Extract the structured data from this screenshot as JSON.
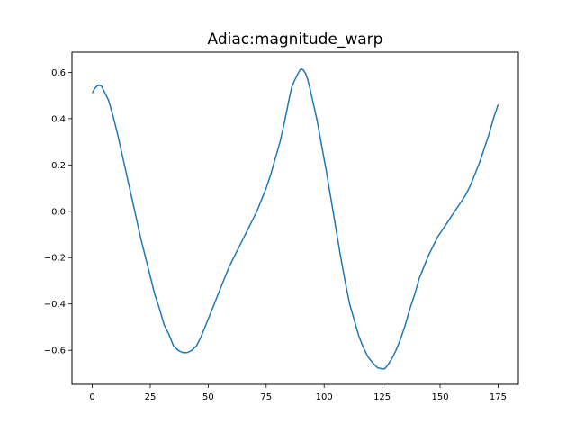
{
  "chart_data": {
    "type": "line",
    "title": "Adiac:magnitude_warp",
    "xlabel": "",
    "ylabel": "",
    "xlim": [
      -8.75,
      183.75
    ],
    "ylim": [
      -0.747,
      0.687
    ],
    "grid": false,
    "legend": "none",
    "x_ticks": [
      0,
      25,
      50,
      75,
      100,
      125,
      150,
      175
    ],
    "x_tick_labels": [
      "0",
      "25",
      "50",
      "75",
      "100",
      "125",
      "150",
      "175"
    ],
    "y_ticks": [
      -0.6,
      -0.4,
      -0.2,
      0.0,
      0.2,
      0.4,
      0.6
    ],
    "y_tick_labels": [
      "−0.6",
      "−0.4",
      "−0.2",
      "0.0",
      "0.2",
      "0.4",
      "0.6"
    ],
    "series": [
      {
        "color": "#1f77b4",
        "points": [
          [
            0,
            0.51
          ],
          [
            1,
            0.53
          ],
          [
            2,
            0.54
          ],
          [
            3,
            0.545
          ],
          [
            4,
            0.54
          ],
          [
            5,
            0.52
          ],
          [
            7,
            0.48
          ],
          [
            9,
            0.41
          ],
          [
            11,
            0.33
          ],
          [
            13,
            0.24
          ],
          [
            15,
            0.15
          ],
          [
            17,
            0.06
          ],
          [
            19,
            -0.03
          ],
          [
            21,
            -0.12
          ],
          [
            23,
            -0.2
          ],
          [
            25,
            -0.28
          ],
          [
            27,
            -0.36
          ],
          [
            29,
            -0.42
          ],
          [
            31,
            -0.49
          ],
          [
            33,
            -0.53
          ],
          [
            35,
            -0.58
          ],
          [
            37,
            -0.6
          ],
          [
            39,
            -0.61
          ],
          [
            41,
            -0.61
          ],
          [
            43,
            -0.6
          ],
          [
            45,
            -0.58
          ],
          [
            47,
            -0.54
          ],
          [
            49,
            -0.49
          ],
          [
            51,
            -0.44
          ],
          [
            53,
            -0.39
          ],
          [
            55,
            -0.34
          ],
          [
            57,
            -0.29
          ],
          [
            59,
            -0.24
          ],
          [
            61,
            -0.2
          ],
          [
            63,
            -0.16
          ],
          [
            65,
            -0.12
          ],
          [
            67,
            -0.08
          ],
          [
            69,
            -0.04
          ],
          [
            71,
            0.0
          ],
          [
            73,
            0.05
          ],
          [
            75,
            0.1
          ],
          [
            77,
            0.16
          ],
          [
            79,
            0.23
          ],
          [
            81,
            0.3
          ],
          [
            83,
            0.39
          ],
          [
            84,
            0.44
          ],
          [
            85,
            0.49
          ],
          [
            86,
            0.535
          ],
          [
            87,
            0.56
          ],
          [
            88,
            0.58
          ],
          [
            89,
            0.6
          ],
          [
            90,
            0.615
          ],
          [
            91,
            0.61
          ],
          [
            92,
            0.595
          ],
          [
            93,
            0.565
          ],
          [
            94,
            0.525
          ],
          [
            95,
            0.48
          ],
          [
            97,
            0.39
          ],
          [
            99,
            0.28
          ],
          [
            101,
            0.17
          ],
          [
            103,
            0.05
          ],
          [
            105,
            -0.07
          ],
          [
            107,
            -0.19
          ],
          [
            109,
            -0.3
          ],
          [
            111,
            -0.4
          ],
          [
            113,
            -0.47
          ],
          [
            115,
            -0.54
          ],
          [
            117,
            -0.59
          ],
          [
            119,
            -0.63
          ],
          [
            121,
            -0.655
          ],
          [
            123,
            -0.675
          ],
          [
            125,
            -0.68
          ],
          [
            126,
            -0.68
          ],
          [
            127,
            -0.67
          ],
          [
            129,
            -0.64
          ],
          [
            131,
            -0.6
          ],
          [
            133,
            -0.55
          ],
          [
            135,
            -0.49
          ],
          [
            137,
            -0.42
          ],
          [
            139,
            -0.36
          ],
          [
            141,
            -0.29
          ],
          [
            143,
            -0.24
          ],
          [
            145,
            -0.19
          ],
          [
            147,
            -0.15
          ],
          [
            149,
            -0.11
          ],
          [
            151,
            -0.08
          ],
          [
            153,
            -0.05
          ],
          [
            155,
            -0.02
          ],
          [
            157,
            0.01
          ],
          [
            159,
            0.04
          ],
          [
            161,
            0.07
          ],
          [
            163,
            0.11
          ],
          [
            165,
            0.16
          ],
          [
            167,
            0.21
          ],
          [
            169,
            0.27
          ],
          [
            171,
            0.33
          ],
          [
            173,
            0.4
          ],
          [
            175,
            0.46
          ]
        ]
      }
    ]
  }
}
